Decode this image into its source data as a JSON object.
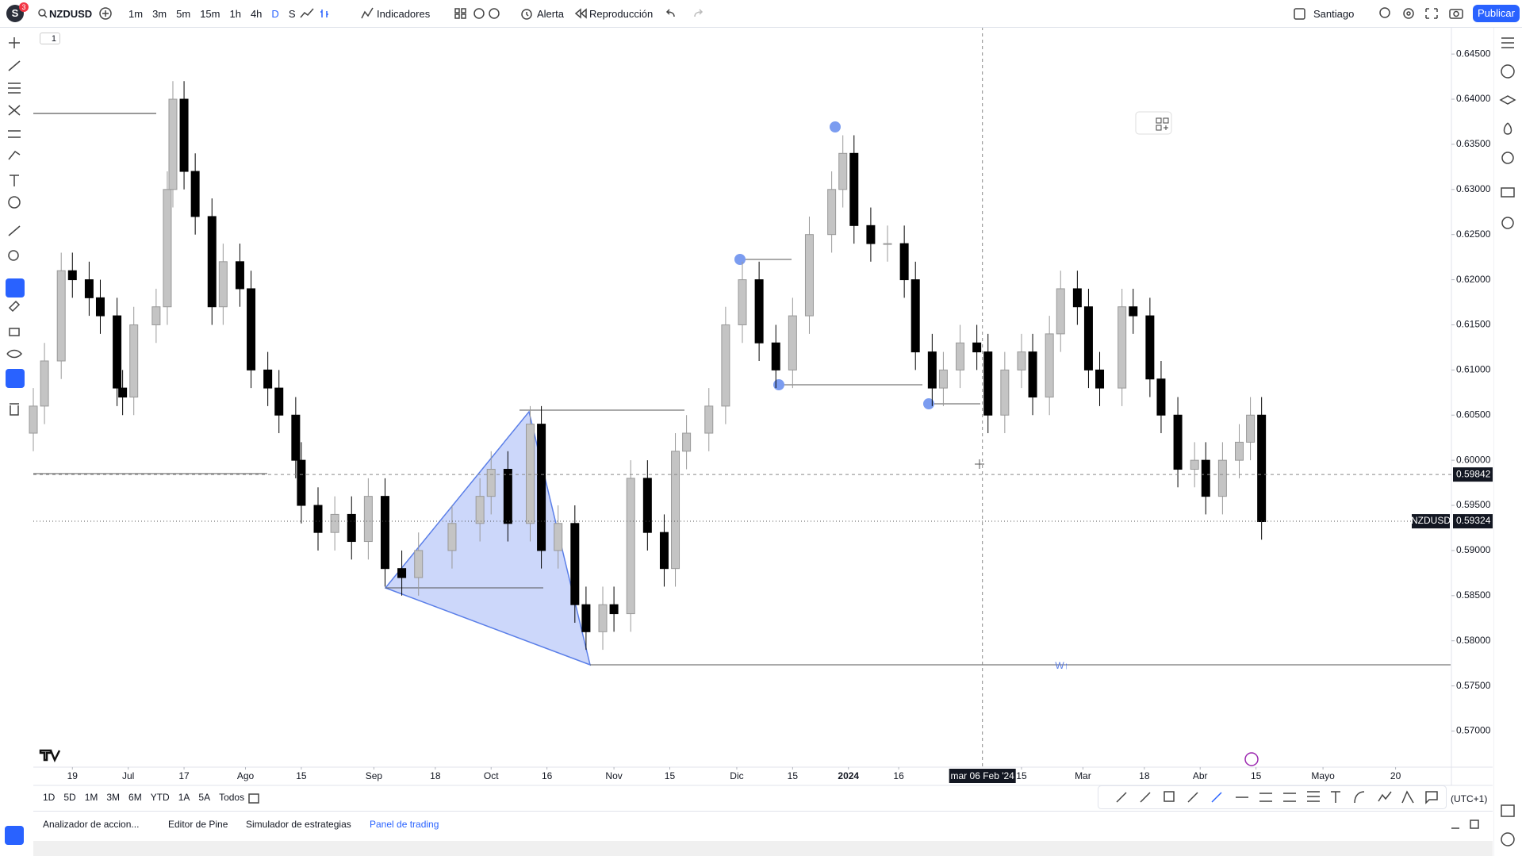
{
  "top_toolbar": {
    "avatar": "S",
    "badge": "3",
    "symbol": "NZDUSD",
    "intervals": [
      "1m",
      "3m",
      "5m",
      "15m",
      "1h",
      "4h",
      "D",
      "S"
    ],
    "indicators": "Indicadores",
    "alert": "Alerta",
    "replay": "Reproducción",
    "layout": "Santiago",
    "publish": "Publicar"
  },
  "legend_toggle": "1",
  "chart_data": {
    "type": "candlestick",
    "x": [
      -17,
      -15,
      -12,
      -10,
      -7,
      -5,
      -2,
      -1,
      1,
      5,
      7,
      8,
      10,
      12,
      15,
      17,
      20,
      22,
      25,
      27,
      30,
      31,
      34,
      37,
      40,
      43,
      46,
      49,
      52,
      58,
      63,
      65,
      68,
      72,
      74,
      77,
      80,
      82,
      85,
      87,
      90,
      93,
      96,
      98,
      100,
      104,
      107,
      110,
      113,
      116,
      119,
      122,
      126,
      128,
      130,
      133,
      136,
      139,
      141,
      144,
      146,
      149,
      152,
      154,
      157,
      160,
      162,
      165,
      167,
      170,
      172,
      174,
      178,
      180,
      183,
      185,
      188,
      191,
      193,
      196,
      199,
      201,
      203
    ],
    "open": [
      0.603,
      0.606,
      0.611,
      0.621,
      0.62,
      0.618,
      0.616,
      0.608,
      0.607,
      0.615,
      0.617,
      0.63,
      0.64,
      0.632,
      0.627,
      0.617,
      0.622,
      0.619,
      0.61,
      0.608,
      0.605,
      0.6,
      0.595,
      0.592,
      0.594,
      0.591,
      0.596,
      0.588,
      0.587,
      0.59,
      0.593,
      0.596,
      0.599,
      0.593,
      0.604,
      0.59,
      0.593,
      0.584,
      0.581,
      0.584,
      0.583,
      0.598,
      0.592,
      0.588,
      0.601,
      0.603,
      0.606,
      0.615,
      0.62,
      0.613,
      0.61,
      0.616,
      0.625,
      0.63,
      0.634,
      0.626,
      0.624,
      0.624,
      0.62,
      0.612,
      0.608,
      0.61,
      0.613,
      0.612,
      0.605,
      0.61,
      0.612,
      0.607,
      0.614,
      0.619,
      0.617,
      0.61,
      0.608,
      0.617,
      0.616,
      0.609,
      0.605,
      0.599,
      0.6,
      0.596,
      0.6,
      0.602,
      0.605
    ],
    "high": [
      0.608,
      0.613,
      0.623,
      0.623,
      0.622,
      0.62,
      0.618,
      0.61,
      0.617,
      0.619,
      0.632,
      0.642,
      0.642,
      0.634,
      0.629,
      0.624,
      0.624,
      0.621,
      0.612,
      0.61,
      0.607,
      0.602,
      0.597,
      0.596,
      0.596,
      0.598,
      0.598,
      0.59,
      0.592,
      0.595,
      0.598,
      0.601,
      0.601,
      0.606,
      0.606,
      0.595,
      0.595,
      0.586,
      0.586,
      0.586,
      0.6,
      0.6,
      0.594,
      0.603,
      0.605,
      0.608,
      0.617,
      0.622,
      0.622,
      0.615,
      0.618,
      0.627,
      0.632,
      0.636,
      0.636,
      0.628,
      0.626,
      0.626,
      0.622,
      0.614,
      0.612,
      0.615,
      0.615,
      0.614,
      0.612,
      0.614,
      0.614,
      0.616,
      0.621,
      0.621,
      0.619,
      0.612,
      0.619,
      0.619,
      0.618,
      0.611,
      0.607,
      0.602,
      0.602,
      0.602,
      0.604,
      0.607,
      0.607
    ],
    "low": [
      0.601,
      0.604,
      0.609,
      0.618,
      0.616,
      0.614,
      0.606,
      0.605,
      0.605,
      0.613,
      0.615,
      0.628,
      0.63,
      0.625,
      0.615,
      0.615,
      0.617,
      0.608,
      0.606,
      0.603,
      0.598,
      0.593,
      0.59,
      0.59,
      0.589,
      0.589,
      0.586,
      0.585,
      0.585,
      0.588,
      0.591,
      0.594,
      0.591,
      0.591,
      0.588,
      0.588,
      0.582,
      0.579,
      0.579,
      0.581,
      0.581,
      0.59,
      0.586,
      0.586,
      0.599,
      0.601,
      0.604,
      0.613,
      0.611,
      0.608,
      0.608,
      0.614,
      0.623,
      0.628,
      0.624,
      0.622,
      0.622,
      0.618,
      0.61,
      0.606,
      0.606,
      0.608,
      0.61,
      0.603,
      0.603,
      0.608,
      0.605,
      0.605,
      0.612,
      0.615,
      0.608,
      0.606,
      0.606,
      0.614,
      0.607,
      0.603,
      0.597,
      0.597,
      0.594,
      0.594,
      0.598,
      0.6,
      0.5912
    ],
    "close": [
      0.606,
      0.611,
      0.621,
      0.62,
      0.618,
      0.616,
      0.608,
      0.607,
      0.615,
      0.617,
      0.63,
      0.64,
      0.632,
      0.627,
      0.617,
      0.622,
      0.619,
      0.61,
      0.608,
      0.605,
      0.6,
      0.595,
      0.592,
      0.594,
      0.591,
      0.596,
      0.588,
      0.587,
      0.59,
      0.593,
      0.596,
      0.599,
      0.593,
      0.604,
      0.59,
      0.593,
      0.584,
      0.581,
      0.584,
      0.583,
      0.598,
      0.592,
      0.588,
      0.601,
      0.603,
      0.606,
      0.615,
      0.62,
      0.613,
      0.61,
      0.616,
      0.625,
      0.63,
      0.634,
      0.626,
      0.624,
      0.624,
      0.62,
      0.612,
      0.608,
      0.61,
      0.613,
      0.612,
      0.605,
      0.61,
      0.612,
      0.607,
      0.614,
      0.619,
      0.617,
      0.61,
      0.608,
      0.617,
      0.616,
      0.609,
      0.605,
      0.599,
      0.6,
      0.596,
      0.6,
      0.602,
      0.605,
      0.5932
    ],
    "up_color": "#c4c4c4",
    "down_color": "#000000",
    "xlim": [
      -17,
      237
    ],
    "xticks": [
      {
        "value": -10,
        "label": "19"
      },
      {
        "value": 0,
        "label": "Jul"
      },
      {
        "value": 10,
        "label": "17"
      },
      {
        "value": 21,
        "label": "Ago"
      },
      {
        "value": 31,
        "label": "15"
      },
      {
        "value": 44,
        "label": "Sep"
      },
      {
        "value": 55,
        "label": "18"
      },
      {
        "value": 65,
        "label": "Oct"
      },
      {
        "value": 75,
        "label": "16"
      },
      {
        "value": 87,
        "label": "Nov"
      },
      {
        "value": 97,
        "label": "15"
      },
      {
        "value": 109,
        "label": "Dic"
      },
      {
        "value": 119,
        "label": "15"
      },
      {
        "value": 129,
        "label": "2024"
      },
      {
        "value": 138,
        "label": "16"
      },
      {
        "value": 160,
        "label": "15"
      },
      {
        "value": 171,
        "label": "Mar"
      },
      {
        "value": 182,
        "label": "18"
      },
      {
        "value": 192,
        "label": "Abr"
      },
      {
        "value": 202,
        "label": "15"
      },
      {
        "value": 214,
        "label": "Mayo"
      },
      {
        "value": 227,
        "label": "20"
      }
    ],
    "ylim": [
      0.566,
      0.648
    ],
    "yticks": [
      {
        "value": 0.645,
        "label": "0.64500"
      },
      {
        "value": 0.64,
        "label": "0.64000"
      },
      {
        "value": 0.635,
        "label": "0.63500"
      },
      {
        "value": 0.63,
        "label": "0.63000"
      },
      {
        "value": 0.625,
        "label": "0.62500"
      },
      {
        "value": 0.62,
        "label": "0.62000"
      },
      {
        "value": 0.615,
        "label": "0.61500"
      },
      {
        "value": 0.61,
        "label": "0.61000"
      },
      {
        "value": 0.605,
        "label": "0.60500"
      },
      {
        "value": 0.6,
        "label": "0.60000"
      },
      {
        "value": 0.595,
        "label": "0.59500"
      },
      {
        "value": 0.59,
        "label": "0.59000"
      },
      {
        "value": 0.585,
        "label": "0.58500"
      },
      {
        "value": 0.58,
        "label": "0.58000"
      },
      {
        "value": 0.575,
        "label": "0.57500"
      },
      {
        "value": 0.57,
        "label": "0.57000"
      }
    ],
    "crosshair": {
      "x": 153,
      "date_label": "mar 06 Feb '24",
      "price": 0.59842,
      "price_label": "0.59842"
    },
    "last_price": {
      "value": 0.59324,
      "label": "0.59324",
      "symbol": "NZDUSD"
    },
    "drawing_label": "W↑"
  },
  "range_bar": {
    "ranges": [
      "1D",
      "5D",
      "1M",
      "3M",
      "6M",
      "YTD",
      "1A",
      "5A",
      "Todos"
    ],
    "timezone": "(UTC+1)"
  },
  "tabs": [
    "Analizador de accion...",
    "Editor de Pine",
    "Simulador de estrategias",
    "Panel de trading"
  ]
}
